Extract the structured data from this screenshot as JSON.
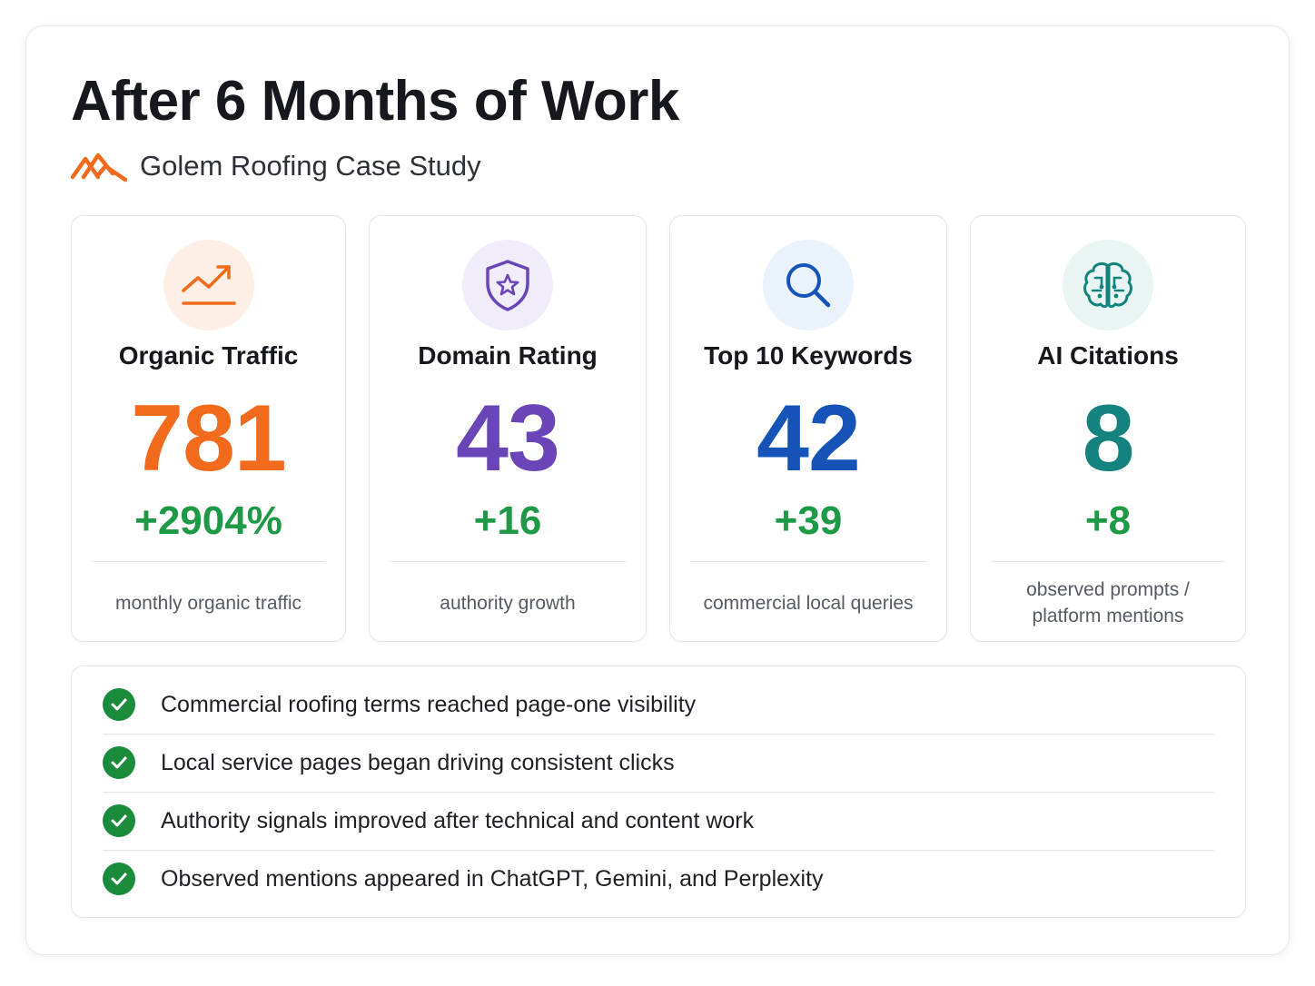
{
  "header": {
    "title": "After 6 Months of Work",
    "subtitle": "Golem Roofing Case Study",
    "logo_icon": "roof-icon",
    "logo_color": "#f26a1b"
  },
  "metrics": [
    {
      "icon": "trend-up-icon",
      "title": "Organic Traffic",
      "value": "781",
      "delta": "+2904%",
      "caption": "monthly organic traffic",
      "accent": "#f26a1b",
      "icon_bg": "#fdeee6"
    },
    {
      "icon": "shield-star-icon",
      "title": "Domain Rating",
      "value": "43",
      "delta": "+16",
      "caption": "authority growth",
      "accent": "#6a45b8",
      "icon_bg": "#f1ecfa"
    },
    {
      "icon": "search-icon",
      "title": "Top 10 Keywords",
      "value": "42",
      "delta": "+39",
      "caption": "commercial local queries",
      "accent": "#1553b8",
      "icon_bg": "#eaf2fc"
    },
    {
      "icon": "brain-icon",
      "title": "AI Citations",
      "value": "8",
      "delta": "+8",
      "caption": "observed prompts / platform mentions",
      "accent": "#14837d",
      "icon_bg": "#e8f5f3"
    }
  ],
  "delta_color": "#1e9a46",
  "highlights": [
    {
      "icon": "check-icon",
      "text": "Commercial roofing terms reached page-one visibility"
    },
    {
      "icon": "check-icon",
      "text": "Local service pages began driving consistent clicks"
    },
    {
      "icon": "check-icon",
      "text": "Authority signals improved after technical and content work"
    },
    {
      "icon": "check-icon",
      "text": "Observed mentions appeared in ChatGPT, Gemini, and Perplexity"
    }
  ]
}
